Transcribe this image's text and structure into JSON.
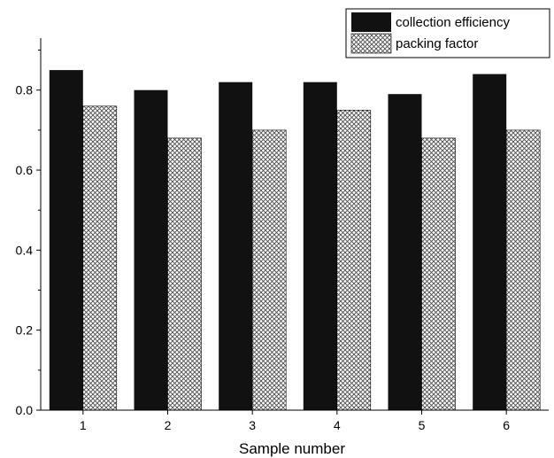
{
  "chart_data": {
    "type": "bar",
    "title": "",
    "xlabel": "Sample number",
    "ylabel": "",
    "categories": [
      "1",
      "2",
      "3",
      "4",
      "5",
      "6"
    ],
    "series": [
      {
        "name": "collection efficiency",
        "values": [
          0.85,
          0.8,
          0.82,
          0.82,
          0.79,
          0.84
        ],
        "color": "#111111",
        "fill": "solid"
      },
      {
        "name": "packing factor",
        "values": [
          0.76,
          0.68,
          0.7,
          0.75,
          0.68,
          0.7
        ],
        "color": "#8a8a8a",
        "fill": "crosshatch"
      }
    ],
    "ylim": [
      0,
      0.93
    ],
    "yticks": [
      0.0,
      0.2,
      0.4,
      0.6,
      0.8
    ],
    "ytick_labels": [
      "0.0",
      "0.2",
      "0.4",
      "0.6",
      "0.8"
    ],
    "grid": false,
    "legend_position": "top-right"
  }
}
